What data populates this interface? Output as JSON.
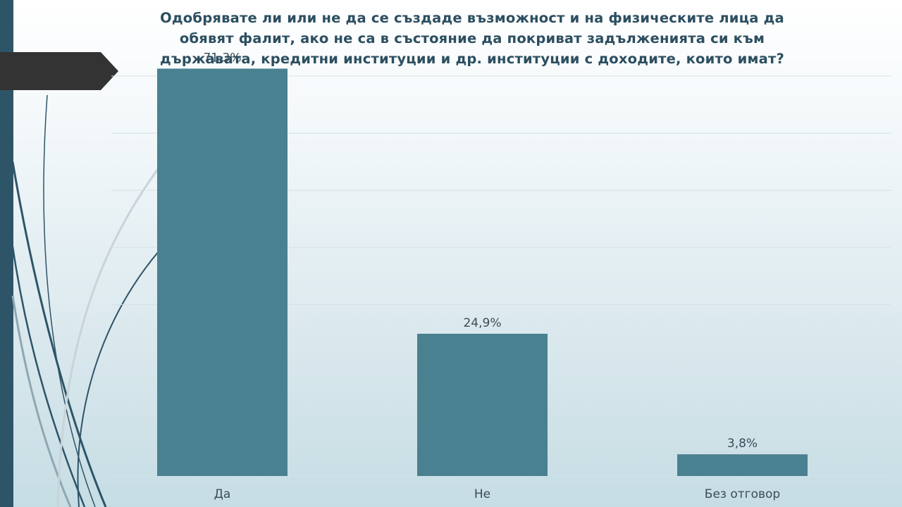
{
  "slide": {
    "question": "Одобрявате ли или не да се създаде възможност и на физическите лица да обявят фалит, ако не са в състояние да покриват задълженията си към държавата, кредитни институции и др. институции с доходите, които имат?"
  },
  "colors": {
    "bar": "#4a8190",
    "gridline": "#d3e2e8",
    "title": "#2c4f60",
    "left_bar": "#2e5468",
    "tag": "#333333"
  },
  "chart_data": {
    "type": "bar",
    "title": "Одобрявате ли или не да се създаде възможност и на физическите лица да обявят фалит, ако не са в състояние да покриват задълженията си към държавата, кредитни институции и др. институции с доходите, които имат?",
    "categories": [
      "Да",
      "Не",
      "Без отговор"
    ],
    "values": [
      71.3,
      24.9,
      3.8
    ],
    "data_labels": [
      "71,3%",
      "24,9%",
      "3,8%"
    ],
    "xlabel": "",
    "ylabel": "",
    "ylim": [
      0,
      70
    ],
    "grid": true,
    "legend": "none"
  }
}
